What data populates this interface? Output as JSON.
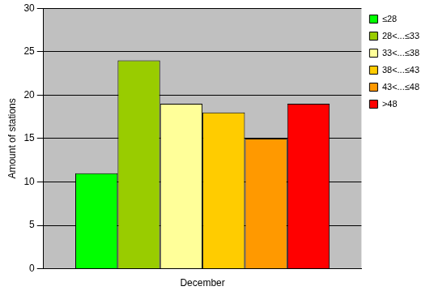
{
  "chart_data": {
    "type": "bar",
    "y_label": "Amount of stations",
    "categories": [
      "December"
    ],
    "series": [
      {
        "name": "≤28",
        "color": "#00ff00",
        "values": [
          11
        ]
      },
      {
        "name": "28<...≤33",
        "color": "#99cc00",
        "values": [
          24
        ]
      },
      {
        "name": "33<...≤38",
        "color": "#ffff99",
        "values": [
          19
        ]
      },
      {
        "name": "38<...≤43",
        "color": "#ffcc00",
        "values": [
          18
        ]
      },
      {
        "name": "43<...≤48",
        "color": "#ff9900",
        "values": [
          15
        ]
      },
      {
        "name": ">48",
        "color": "#ff0000",
        "values": [
          19
        ]
      }
    ],
    "ylim": [
      0,
      30
    ],
    "yticks": [
      0,
      5,
      10,
      15,
      20,
      25,
      30
    ],
    "grid": true,
    "legend": "right"
  }
}
